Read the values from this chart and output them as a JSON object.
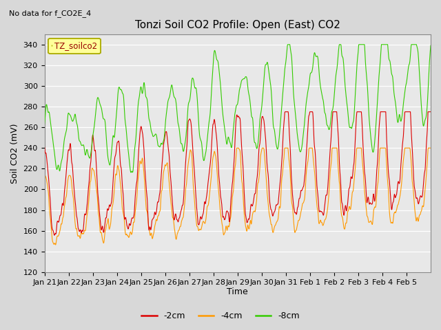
{
  "title": "Tonzi Soil CO2 Profile: Open (East) CO2",
  "subtitle": "No data for f_CO2E_4",
  "ylabel": "Soil CO2 (mV)",
  "xlabel": "Time",
  "legend_label": "TZ_soilco2",
  "series_labels": [
    "-2cm",
    "-4cm",
    "-8cm"
  ],
  "series_colors": [
    "#dd0000",
    "#ff9900",
    "#33cc00"
  ],
  "ylim": [
    120,
    350
  ],
  "bg_color": "#d8d8d8",
  "plot_bg_color": "#e8e8e8",
  "legend_box_color": "#ffff99",
  "legend_box_edge": "#aaaa00",
  "grid_color": "#ffffff",
  "tick_labels": [
    "Jan 21",
    "Jan 22",
    "Jan 23",
    "Jan 24",
    "Jan 25",
    "Jan 26",
    "Jan 27",
    "Jan 28",
    "Jan 29",
    "Jan 30",
    "Jan 31",
    "Feb 1",
    "Feb 2",
    "Feb 3",
    "Feb 4",
    "Feb 5"
  ],
  "num_points": 1600,
  "seed": 7
}
